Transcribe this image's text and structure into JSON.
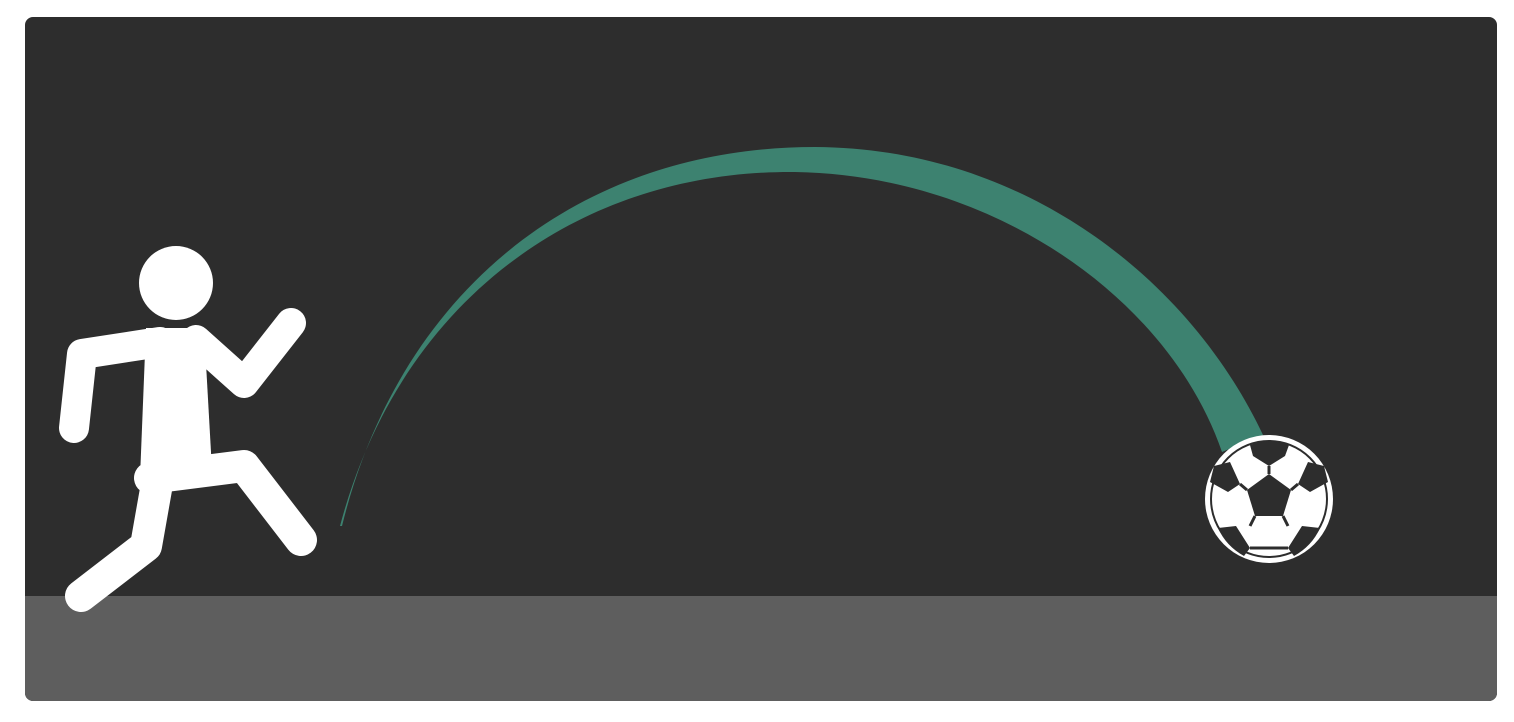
{
  "colors": {
    "page_background": "#ffffff",
    "stage_background": "#2d2d2d",
    "ground": "#5e5e5e",
    "trajectory": "#3d8270",
    "figure": "#ffffff",
    "ball_patch": "#2d2d2d"
  },
  "icons": {
    "player": "running-person-icon",
    "ball": "soccer-ball-icon",
    "trajectory": "ball-arc-trail"
  }
}
